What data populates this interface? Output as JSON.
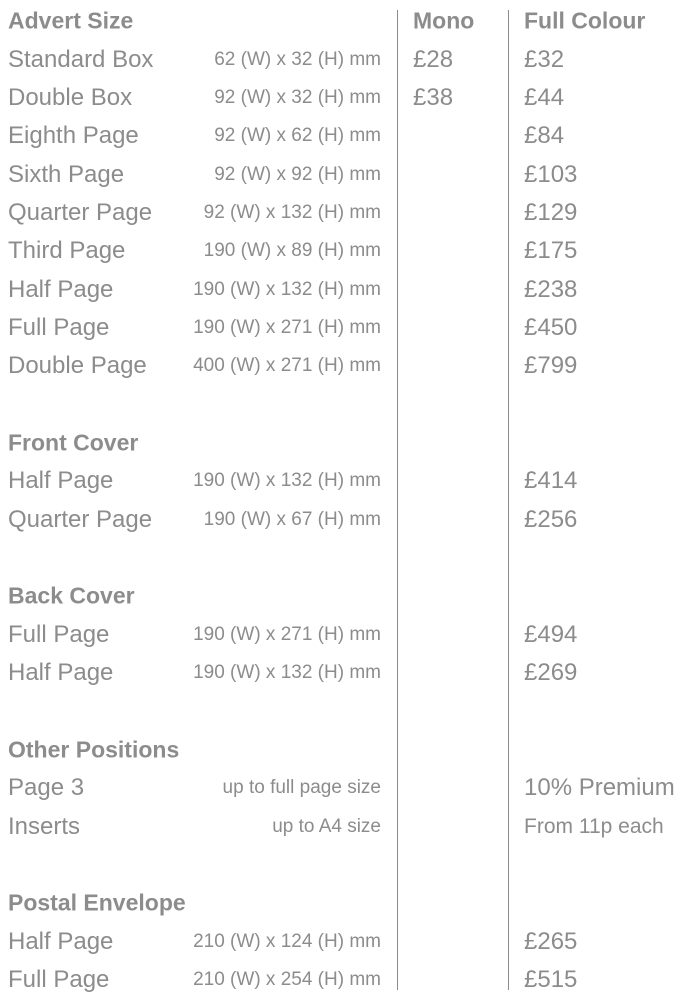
{
  "header": {
    "advert_size": "Advert Size",
    "mono": "Mono",
    "full_colour": "Full Colour"
  },
  "rows": [
    {
      "type": "header"
    },
    {
      "name": "Standard Box",
      "size": "62 (W) x 32 (H) mm",
      "mono": "£28",
      "full": "£32"
    },
    {
      "name": "Double Box",
      "size": "92 (W) x 32 (H) mm",
      "mono": "£38",
      "full": "£44"
    },
    {
      "name": "Eighth Page",
      "size": "92 (W) x 62 (H) mm",
      "full": "£84"
    },
    {
      "name": "Sixth Page",
      "size": "92 (W) x 92 (H) mm",
      "full": "£103"
    },
    {
      "name": "Quarter Page",
      "size": "92 (W) x 132 (H) mm",
      "full": "£129"
    },
    {
      "name": "Third Page",
      "size": "190 (W) x 89 (H) mm",
      "full": "£175"
    },
    {
      "name": "Half Page",
      "size": "190 (W) x 132 (H) mm",
      "full": "£238"
    },
    {
      "name": "Full Page",
      "size": "190 (W) x 271 (H) mm",
      "full": "£450"
    },
    {
      "name": "Double Page",
      "size": "400 (W) x 271 (H) mm",
      "full": "£799"
    },
    {
      "type": "blank"
    },
    {
      "type": "section",
      "name": "Front Cover"
    },
    {
      "name": "Half Page",
      "size": "190 (W) x 132 (H) mm",
      "full": "£414"
    },
    {
      "name": "Quarter Page",
      "size": "190 (W) x 67 (H) mm",
      "full": "£256"
    },
    {
      "type": "blank"
    },
    {
      "type": "section",
      "name": "Back Cover"
    },
    {
      "name": "Full Page",
      "size": "190 (W)  x 271 (H) mm",
      "full": "£494"
    },
    {
      "name": "Half Page",
      "size": "190 (W) x 132 (H) mm",
      "full": "£269"
    },
    {
      "type": "blank"
    },
    {
      "type": "section",
      "name": "Other Positions"
    },
    {
      "name": "Page 3",
      "size": "up to full page size",
      "full": "10% Premium"
    },
    {
      "name": "Inserts",
      "size": "up to A4 size",
      "full": "From 11p each",
      "full_small": true
    },
    {
      "type": "blank"
    },
    {
      "type": "section",
      "name": "Postal Envelope"
    },
    {
      "name": "Half Page",
      "size": "210 (W) x 124 (H)  mm",
      "full": "£265"
    },
    {
      "name": "Full Page",
      "size": "210 (W) x 254 (H) mm",
      "full": "£515"
    }
  ]
}
